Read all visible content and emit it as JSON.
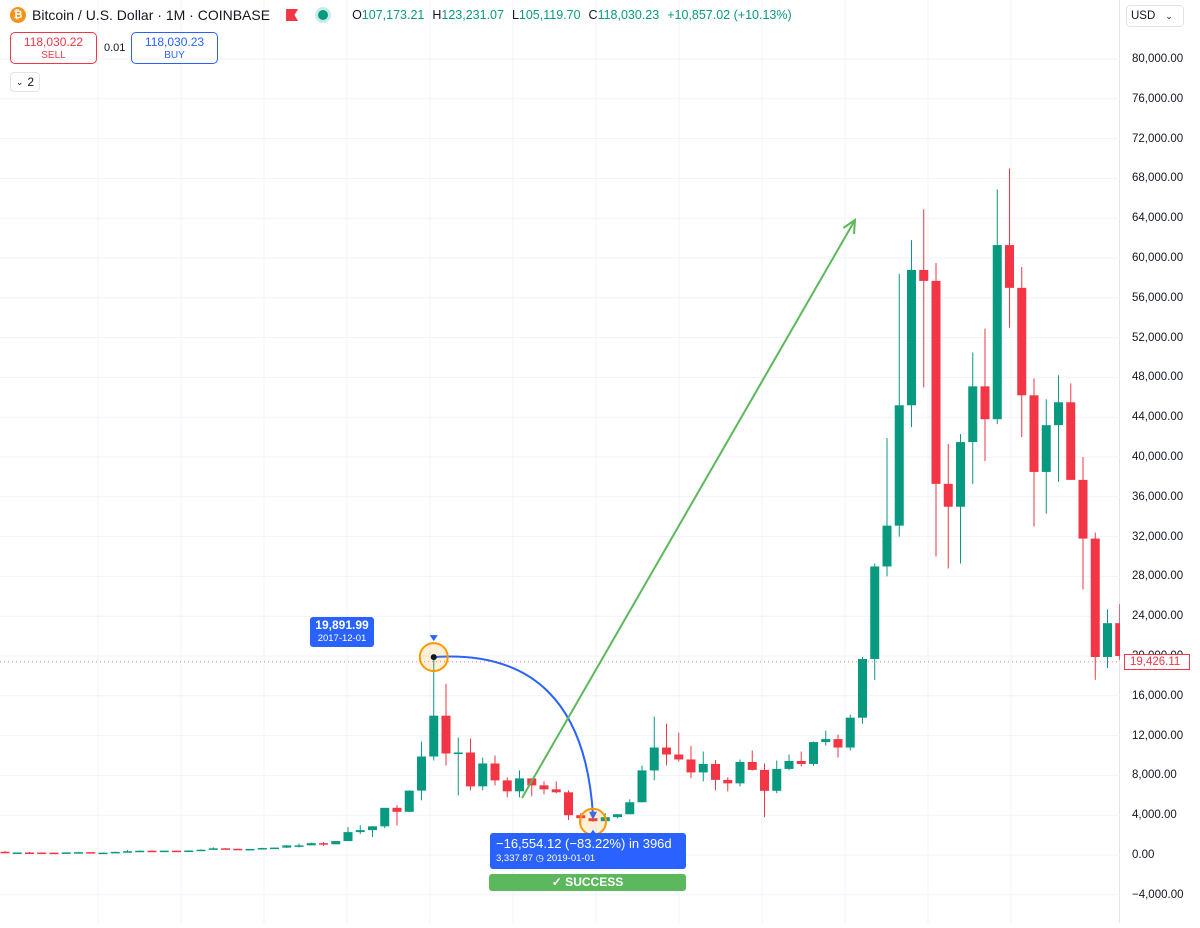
{
  "header": {
    "coin_symbol": "₿",
    "title": "Bitcoin / U.S. Dollar · 1M · COINBASE",
    "ohlc": {
      "o_label": "O",
      "o": "107,173.21",
      "h_label": "H",
      "h": "123,231.07",
      "l_label": "L",
      "l": "105,119.70",
      "c_label": "C",
      "c": "118,030.23",
      "change": "+10,857.02 (+10.13%)"
    }
  },
  "trade": {
    "sell_price": "118,030.22",
    "sell_label": "SELL",
    "spread": "0.01",
    "buy_price": "118,030.23",
    "buy_label": "BUY"
  },
  "collapse_count": "2",
  "currency": "USD",
  "annotations": {
    "high_value": "19,891.99",
    "high_date": "2017-12-01",
    "drawdown": "−16,554.12 (−83.22%) in 396d",
    "low_value": "3,337.87",
    "low_date": "2019-01-01",
    "success": "✓ SUCCESS"
  },
  "last_price_label": "19,426.11",
  "colors": {
    "up": "#089981",
    "down": "#f23645",
    "accent": "#2962ff",
    "arrow": "#5cb85c"
  },
  "chart_data": {
    "type": "candlestick",
    "title": "Bitcoin / U.S. Dollar · 1M · COINBASE",
    "ylim": [
      -4000,
      82000
    ],
    "y_ticks": [
      -4000,
      0,
      4000,
      8000,
      12000,
      16000,
      20000,
      24000,
      28000,
      32000,
      36000,
      40000,
      44000,
      48000,
      52000,
      56000,
      60000,
      64000,
      68000,
      72000,
      76000,
      80000
    ],
    "y_tick_labels": [
      "−4,000.00",
      "0.00",
      "4,000.00",
      "8,000.00",
      "12,000.00",
      "16,000.00",
      "20,000.00",
      "24,000.00",
      "28,000.00",
      "32,000.00",
      "36,000.00",
      "40,000.00",
      "44,000.00",
      "48,000.00",
      "52,000.00",
      "56,000.00",
      "60,000.00",
      "64,000.00",
      "68,000.00",
      "72,000.00",
      "76,000.00",
      "80,000.00"
    ],
    "start": "2015-01",
    "candles": [
      [
        320,
        420,
        200,
        220
      ],
      [
        220,
        260,
        170,
        250
      ],
      [
        250,
        300,
        240,
        245
      ],
      [
        245,
        260,
        215,
        235
      ],
      [
        235,
        250,
        225,
        232
      ],
      [
        232,
        265,
        215,
        262
      ],
      [
        262,
        320,
        260,
        285
      ],
      [
        285,
        290,
        200,
        232
      ],
      [
        232,
        260,
        225,
        236
      ],
      [
        236,
        330,
        235,
        312
      ],
      [
        312,
        500,
        300,
        378
      ],
      [
        378,
        465,
        350,
        430
      ],
      [
        430,
        460,
        350,
        370
      ],
      [
        370,
        440,
        360,
        435
      ],
      [
        435,
        425,
        400,
        416
      ],
      [
        416,
        470,
        415,
        448
      ],
      [
        448,
        560,
        435,
        530
      ],
      [
        530,
        780,
        530,
        670
      ],
      [
        670,
        700,
        600,
        624
      ],
      [
        624,
        620,
        540,
        575
      ],
      [
        575,
        620,
        595,
        609
      ],
      [
        609,
        740,
        605,
        700
      ],
      [
        700,
        750,
        690,
        742
      ],
      [
        742,
        1000,
        700,
        963
      ],
      [
        963,
        1150,
        750,
        970
      ],
      [
        970,
        1250,
        970,
        1190
      ],
      [
        1190,
        1300,
        900,
        1080
      ],
      [
        1080,
        1400,
        1060,
        1400
      ],
      [
        1400,
        2800,
        1400,
        2300
      ],
      [
        2300,
        3000,
        2100,
        2500
      ],
      [
        2500,
        2900,
        1800,
        2880
      ],
      [
        2880,
        4700,
        2700,
        4740
      ],
      [
        4740,
        5000,
        2970,
        4340
      ],
      [
        4340,
        6500,
        4300,
        6470
      ],
      [
        6470,
        11400,
        5500,
        9900
      ],
      [
        9900,
        19891.99,
        9500,
        14000
      ],
      [
        14000,
        17200,
        9000,
        10200
      ],
      [
        10200,
        11800,
        6000,
        10300
      ],
      [
        10300,
        11700,
        6500,
        6900
      ],
      [
        6900,
        9800,
        6500,
        9200
      ],
      [
        9200,
        10000,
        7000,
        7500
      ],
      [
        7500,
        7800,
        5800,
        6400
      ],
      [
        6400,
        8500,
        5800,
        7700
      ],
      [
        7700,
        7700,
        5900,
        7000
      ],
      [
        7000,
        7400,
        6100,
        6600
      ],
      [
        6600,
        7400,
        6200,
        6300
      ],
      [
        6300,
        6500,
        3500,
        4000
      ],
      [
        4000,
        4200,
        3200,
        3700
      ],
      [
        3700,
        4100,
        3337.87,
        3400
      ],
      [
        3400,
        4200,
        3400,
        3800
      ],
      [
        3800,
        4100,
        3700,
        4100
      ],
      [
        4100,
        5600,
        4100,
        5300
      ],
      [
        5300,
        9000,
        5300,
        8500
      ],
      [
        8500,
        13900,
        7500,
        10800
      ],
      [
        10800,
        13200,
        9000,
        10100
      ],
      [
        10100,
        12300,
        9400,
        9600
      ],
      [
        9600,
        10950,
        7700,
        8300
      ],
      [
        8300,
        10400,
        7400,
        9150
      ],
      [
        9150,
        9550,
        6500,
        7550
      ],
      [
        7550,
        7800,
        6400,
        7200
      ],
      [
        7200,
        9600,
        6900,
        9350
      ],
      [
        9350,
        10500,
        8500,
        8550
      ],
      [
        8550,
        9200,
        3800,
        6450
      ],
      [
        6450,
        9500,
        6200,
        8650
      ],
      [
        8650,
        10100,
        8500,
        9450
      ],
      [
        9450,
        10400,
        8900,
        9150
      ],
      [
        9150,
        11400,
        8950,
        11350
      ],
      [
        11350,
        12500,
        11000,
        11650
      ],
      [
        11650,
        12100,
        9800,
        10800
      ],
      [
        10800,
        14100,
        10500,
        13800
      ],
      [
        13800,
        19900,
        13200,
        19700
      ],
      [
        19700,
        29300,
        17600,
        29000
      ],
      [
        29000,
        41900,
        28000,
        33100
      ],
      [
        33100,
        58400,
        32000,
        45200
      ],
      [
        45200,
        61800,
        43000,
        58800
      ],
      [
        58800,
        64900,
        47000,
        57700
      ],
      [
        57700,
        59500,
        30000,
        37300
      ],
      [
        37300,
        41300,
        28800,
        35000
      ],
      [
        35000,
        42300,
        29300,
        41500
      ],
      [
        41500,
        50500,
        37300,
        47100
      ],
      [
        47100,
        52900,
        39600,
        43800
      ],
      [
        43800,
        66900,
        43300,
        61300
      ],
      [
        61300,
        69000,
        53000,
        57000
      ],
      [
        57000,
        59100,
        42000,
        46200
      ],
      [
        46200,
        47900,
        33000,
        38500
      ],
      [
        38500,
        45800,
        34300,
        43200
      ],
      [
        43200,
        48200,
        37500,
        45500
      ],
      [
        45500,
        47400,
        37700,
        37700
      ],
      [
        37700,
        40000,
        26700,
        31800
      ],
      [
        31800,
        32400,
        17600,
        19900
      ],
      [
        19900,
        24700,
        18800,
        23300
      ],
      [
        23300,
        25200,
        19600,
        20000
      ],
      [
        20000,
        22800,
        18200,
        19426.11
      ]
    ],
    "annotation_from": {
      "date": "2017-12-01",
      "value": 19891.99
    },
    "annotation_to": {
      "date": "2019-01-01",
      "value": 3337.87
    }
  }
}
